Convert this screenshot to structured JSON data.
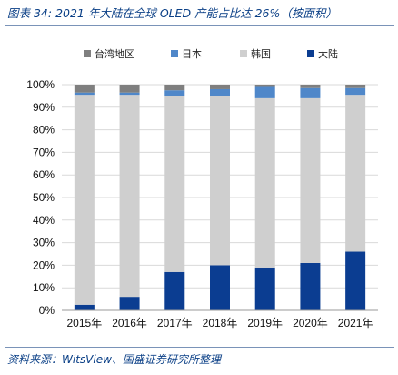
{
  "header": {
    "title": "图表 34:  2021 年大陆在全球 OLED 产能占比达 26%（按面积）"
  },
  "footer": {
    "source": "资料来源：WitsView、国盛证券研究所整理"
  },
  "chart_data": {
    "type": "bar",
    "stacked": true,
    "title": "",
    "xlabel": "",
    "ylabel": "",
    "ylim": [
      0,
      100
    ],
    "yticks": [
      "0%",
      "10%",
      "20%",
      "30%",
      "40%",
      "50%",
      "60%",
      "70%",
      "80%",
      "90%",
      "100%"
    ],
    "categories": [
      "2015年",
      "2016年",
      "2017年",
      "2018年",
      "2019年",
      "2020年",
      "2021年"
    ],
    "legend_position": "top",
    "legend_order": [
      "台湾地区",
      "日本",
      "韩国",
      "大陆"
    ],
    "series": [
      {
        "name": "大陆",
        "color": "#0b3d91",
        "values": [
          2.5,
          6,
          17,
          20,
          19,
          21,
          26
        ]
      },
      {
        "name": "韩国",
        "color": "#cfcfcf",
        "values": [
          93,
          89.5,
          78,
          75,
          75,
          73,
          69.5
        ]
      },
      {
        "name": "日本",
        "color": "#4f87c9",
        "values": [
          1,
          1,
          2.5,
          3,
          5,
          4.5,
          3
        ]
      },
      {
        "name": "台湾地区",
        "color": "#7f7f7f",
        "values": [
          3.5,
          3.5,
          2.5,
          2,
          1,
          1.5,
          1.5
        ]
      }
    ]
  }
}
